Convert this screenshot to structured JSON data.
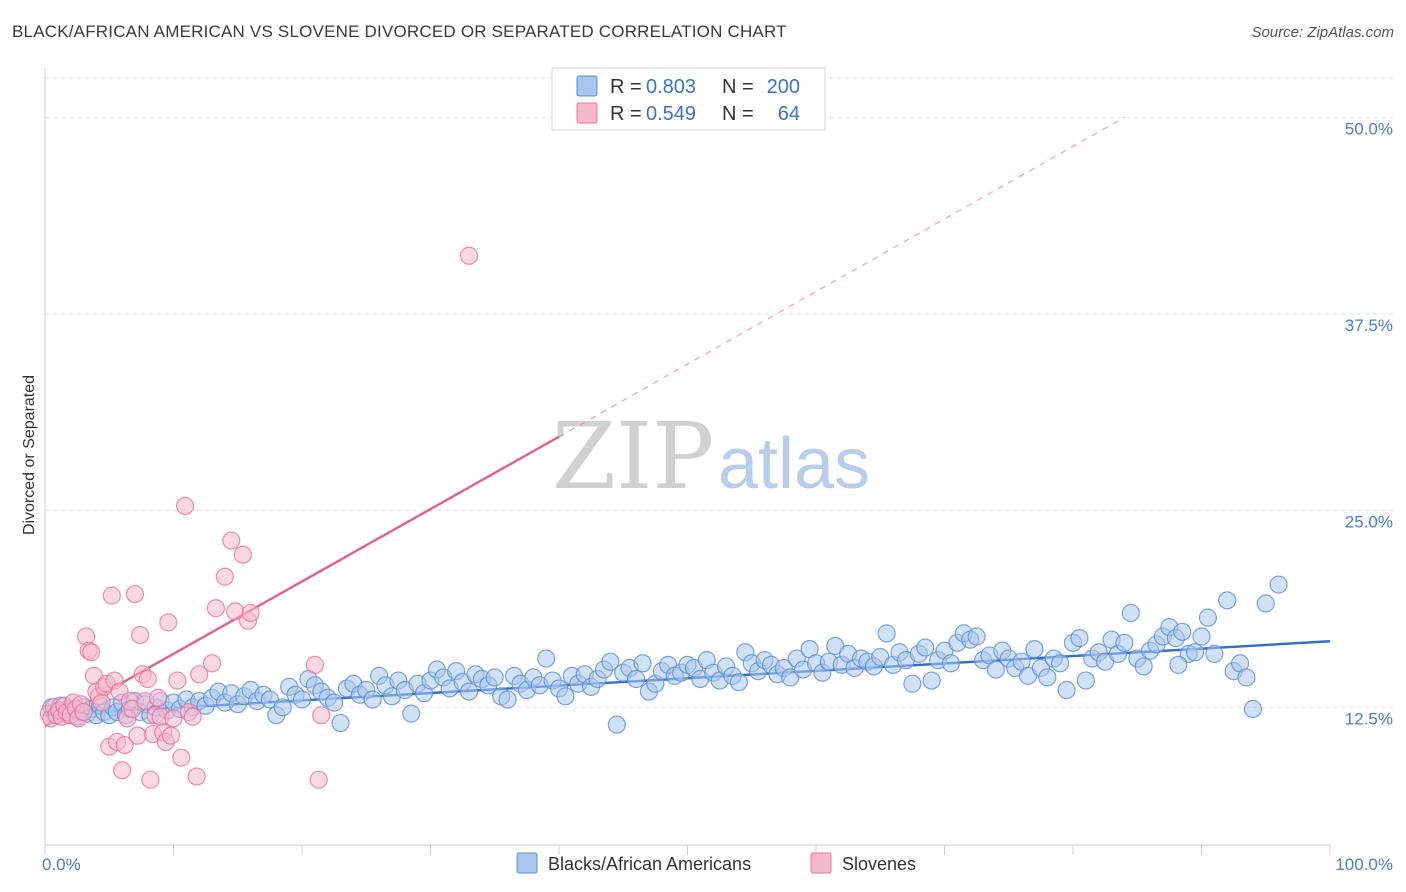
{
  "title": "BLACK/AFRICAN AMERICAN VS SLOVENE DIVORCED OR SEPARATED CORRELATION CHART",
  "source": "Source: ZipAtlas.com",
  "watermark": {
    "zip": "ZIP",
    "atlas": "atlas"
  },
  "colors": {
    "blue": "#5b8fd6",
    "blue_fill": "#a9c6ee",
    "blue_line": "#2f6fd0",
    "pink": "#e8739a",
    "pink_fill": "#f6b8cc",
    "pink_line": "#e0618e",
    "grid": "#e2e2e2",
    "axis_text": "#4a7cc9"
  },
  "legend": {
    "rows": [
      {
        "r_label": "R =",
        "r_value": "0.803",
        "n_label": "N =",
        "n_value": "200",
        "color": "blue"
      },
      {
        "r_label": "R =",
        "r_value": "0.549",
        "n_label": "N =",
        "n_value": "64",
        "color": "pink"
      }
    ]
  },
  "chart_data": {
    "type": "scatter",
    "title": "BLACK/AFRICAN AMERICAN VS SLOVENE DIVORCED OR SEPARATED CORRELATION CHART",
    "xlabel": "",
    "ylabel": "Divorced or Separated",
    "xlim": [
      0,
      100
    ],
    "ylim": [
      3.75,
      52.5
    ],
    "x_tick_labels": [
      {
        "value": 0,
        "label": "0.0%"
      },
      {
        "value": 100,
        "label": "100.0%"
      }
    ],
    "y_tick_labels": [
      {
        "value": 12.5,
        "label": "12.5%"
      },
      {
        "value": 25.0,
        "label": "25.0%"
      },
      {
        "value": 37.5,
        "label": "37.5%"
      },
      {
        "value": 50.0,
        "label": "50.0%"
      }
    ],
    "grid": true,
    "legend_position": "top-center",
    "series": [
      {
        "name": "Blacks/African Americans",
        "color": "blue",
        "trend": {
          "x0": 0,
          "y0": 12.0,
          "x1": 100,
          "y1": 16.7
        },
        "points": [
          [
            0.5,
            12.5
          ],
          [
            0.8,
            12.0
          ],
          [
            1.0,
            12.3
          ],
          [
            1.2,
            12.6
          ],
          [
            1.5,
            12.1
          ],
          [
            1.8,
            12.4
          ],
          [
            2.0,
            12.0
          ],
          [
            2.2,
            12.3
          ],
          [
            2.5,
            11.9
          ],
          [
            2.8,
            12.2
          ],
          [
            3.0,
            12.5
          ],
          [
            3.3,
            12.1
          ],
          [
            3.6,
            12.4
          ],
          [
            4.0,
            12.0
          ],
          [
            4.3,
            12.6
          ],
          [
            4.6,
            12.2
          ],
          [
            5.0,
            12.0
          ],
          [
            5.3,
            12.5
          ],
          [
            5.6,
            12.2
          ],
          [
            6.0,
            12.8
          ],
          [
            6.3,
            12.0
          ],
          [
            6.6,
            12.4
          ],
          [
            7.0,
            12.9
          ],
          [
            7.4,
            12.2
          ],
          [
            7.8,
            12.7
          ],
          [
            8.2,
            12.0
          ],
          [
            8.6,
            12.5
          ],
          [
            9.0,
            12.9
          ],
          [
            9.5,
            12.3
          ],
          [
            10.0,
            12.8
          ],
          [
            10.5,
            12.4
          ],
          [
            11.0,
            13.0
          ],
          [
            11.5,
            12.5
          ],
          [
            12.0,
            12.9
          ],
          [
            12.5,
            12.6
          ],
          [
            13.0,
            13.1
          ],
          [
            13.5,
            13.5
          ],
          [
            14.0,
            12.8
          ],
          [
            14.5,
            13.4
          ],
          [
            15.0,
            12.7
          ],
          [
            15.5,
            13.2
          ],
          [
            16.0,
            13.6
          ],
          [
            16.5,
            12.9
          ],
          [
            17.0,
            13.3
          ],
          [
            17.5,
            13.0
          ],
          [
            18.0,
            12.0
          ],
          [
            18.5,
            12.5
          ],
          [
            19.0,
            13.8
          ],
          [
            19.5,
            13.3
          ],
          [
            20.0,
            13.0
          ],
          [
            20.5,
            14.3
          ],
          [
            21.0,
            13.9
          ],
          [
            21.5,
            13.5
          ],
          [
            22.0,
            13.1
          ],
          [
            22.5,
            12.8
          ],
          [
            23.0,
            11.5
          ],
          [
            23.5,
            13.7
          ],
          [
            24.0,
            14.0
          ],
          [
            24.5,
            13.3
          ],
          [
            25.0,
            13.6
          ],
          [
            25.5,
            13.0
          ],
          [
            26.0,
            14.5
          ],
          [
            26.5,
            13.9
          ],
          [
            27.0,
            13.2
          ],
          [
            27.5,
            14.2
          ],
          [
            28.0,
            13.6
          ],
          [
            28.5,
            12.1
          ],
          [
            29.0,
            14.0
          ],
          [
            29.5,
            13.4
          ],
          [
            30.0,
            14.2
          ],
          [
            30.5,
            14.9
          ],
          [
            31.0,
            14.4
          ],
          [
            31.5,
            13.7
          ],
          [
            32.0,
            14.8
          ],
          [
            32.5,
            14.1
          ],
          [
            33.0,
            13.5
          ],
          [
            33.5,
            14.6
          ],
          [
            34.0,
            14.3
          ],
          [
            34.5,
            13.9
          ],
          [
            35.0,
            14.4
          ],
          [
            35.5,
            13.2
          ],
          [
            36.0,
            13.0
          ],
          [
            36.5,
            14.5
          ],
          [
            37.0,
            14.0
          ],
          [
            37.5,
            13.6
          ],
          [
            38.0,
            14.4
          ],
          [
            38.5,
            13.9
          ],
          [
            39.0,
            15.6
          ],
          [
            39.5,
            14.2
          ],
          [
            40.0,
            13.7
          ],
          [
            40.5,
            13.2
          ],
          [
            41.0,
            14.5
          ],
          [
            41.5,
            14.0
          ],
          [
            42.0,
            14.6
          ],
          [
            42.5,
            13.8
          ],
          [
            43.0,
            14.3
          ],
          [
            43.5,
            14.9
          ],
          [
            44.0,
            15.4
          ],
          [
            44.5,
            11.4
          ],
          [
            45.0,
            14.7
          ],
          [
            45.5,
            15.0
          ],
          [
            46.0,
            14.3
          ],
          [
            46.5,
            15.3
          ],
          [
            47.0,
            13.5
          ],
          [
            47.5,
            14.0
          ],
          [
            48.0,
            14.8
          ],
          [
            48.5,
            15.2
          ],
          [
            49.0,
            14.5
          ],
          [
            49.5,
            14.7
          ],
          [
            50.0,
            15.2
          ],
          [
            50.5,
            15.0
          ],
          [
            51.0,
            14.3
          ],
          [
            51.5,
            15.5
          ],
          [
            52.0,
            14.7
          ],
          [
            52.5,
            14.2
          ],
          [
            53.0,
            15.1
          ],
          [
            53.5,
            14.5
          ],
          [
            54.0,
            14.1
          ],
          [
            54.5,
            16.0
          ],
          [
            55.0,
            15.3
          ],
          [
            55.5,
            14.8
          ],
          [
            56.0,
            15.5
          ],
          [
            56.5,
            15.2
          ],
          [
            57.0,
            14.6
          ],
          [
            57.5,
            15.0
          ],
          [
            58.0,
            14.4
          ],
          [
            58.5,
            15.6
          ],
          [
            59.0,
            14.9
          ],
          [
            59.5,
            16.2
          ],
          [
            60.0,
            15.3
          ],
          [
            60.5,
            14.7
          ],
          [
            61.0,
            15.4
          ],
          [
            61.5,
            16.4
          ],
          [
            62.0,
            15.2
          ],
          [
            62.5,
            15.9
          ],
          [
            63.0,
            15.0
          ],
          [
            63.5,
            15.6
          ],
          [
            64.0,
            15.4
          ],
          [
            64.5,
            15.1
          ],
          [
            65.0,
            15.7
          ],
          [
            65.5,
            17.2
          ],
          [
            66.0,
            15.2
          ],
          [
            66.5,
            16.0
          ],
          [
            67.0,
            15.5
          ],
          [
            67.5,
            14.0
          ],
          [
            68.0,
            15.9
          ],
          [
            68.5,
            16.3
          ],
          [
            69.0,
            14.2
          ],
          [
            69.5,
            15.5
          ],
          [
            70.0,
            16.1
          ],
          [
            70.5,
            15.3
          ],
          [
            71.0,
            16.6
          ],
          [
            71.5,
            17.2
          ],
          [
            72.0,
            16.8
          ],
          [
            72.5,
            17.0
          ],
          [
            73.0,
            15.5
          ],
          [
            73.5,
            15.8
          ],
          [
            74.0,
            14.9
          ],
          [
            74.5,
            16.1
          ],
          [
            75.0,
            15.6
          ],
          [
            75.5,
            15.0
          ],
          [
            76.0,
            15.4
          ],
          [
            76.5,
            14.5
          ],
          [
            77.0,
            16.2
          ],
          [
            77.5,
            15.0
          ],
          [
            78.0,
            14.4
          ],
          [
            78.5,
            15.6
          ],
          [
            79.0,
            15.3
          ],
          [
            79.5,
            13.6
          ],
          [
            80.0,
            16.6
          ],
          [
            80.5,
            16.9
          ],
          [
            81.0,
            14.2
          ],
          [
            81.5,
            15.6
          ],
          [
            82.0,
            16.0
          ],
          [
            82.5,
            15.4
          ],
          [
            83.0,
            16.8
          ],
          [
            83.5,
            15.9
          ],
          [
            84.0,
            16.6
          ],
          [
            84.5,
            18.5
          ],
          [
            85.0,
            15.6
          ],
          [
            85.5,
            15.1
          ],
          [
            86.0,
            16.1
          ],
          [
            86.5,
            16.5
          ],
          [
            87.0,
            17.0
          ],
          [
            87.5,
            17.6
          ],
          [
            88.0,
            16.9
          ],
          [
            88.5,
            17.3
          ],
          [
            89.0,
            15.9
          ],
          [
            89.5,
            16.0
          ],
          [
            90.0,
            17.0
          ],
          [
            90.5,
            18.2
          ],
          [
            91.0,
            15.9
          ],
          [
            92.0,
            19.3
          ],
          [
            92.5,
            14.8
          ],
          [
            93.0,
            15.3
          ],
          [
            93.5,
            14.4
          ],
          [
            94.0,
            12.4
          ],
          [
            95.0,
            19.1
          ],
          [
            96.0,
            20.3
          ],
          [
            88.2,
            15.2
          ]
        ]
      },
      {
        "name": "Slovenes",
        "color": "pink",
        "trend": {
          "x0": 0,
          "y0": 11.3,
          "x1": 40,
          "y1": 29.7,
          "dash_to": {
            "x": 84,
            "y": 50.0
          }
        },
        "points": [
          [
            0.3,
            12.1
          ],
          [
            0.5,
            11.8
          ],
          [
            0.7,
            12.5
          ],
          [
            0.9,
            12.0
          ],
          [
            1.1,
            12.3
          ],
          [
            1.3,
            11.9
          ],
          [
            1.5,
            12.6
          ],
          [
            1.7,
            12.2
          ],
          [
            2.0,
            12.0
          ],
          [
            2.2,
            12.8
          ],
          [
            2.4,
            12.4
          ],
          [
            2.6,
            11.8
          ],
          [
            2.8,
            12.7
          ],
          [
            3.0,
            12.2
          ],
          [
            3.2,
            17.0
          ],
          [
            3.4,
            16.1
          ],
          [
            3.6,
            16.0
          ],
          [
            3.8,
            14.5
          ],
          [
            4.0,
            13.5
          ],
          [
            4.2,
            13.2
          ],
          [
            4.4,
            12.8
          ],
          [
            4.6,
            13.8
          ],
          [
            4.8,
            14.0
          ],
          [
            5.0,
            10.0
          ],
          [
            5.2,
            19.6
          ],
          [
            5.4,
            14.2
          ],
          [
            5.6,
            10.3
          ],
          [
            5.8,
            13.5
          ],
          [
            6.0,
            8.5
          ],
          [
            6.2,
            10.1
          ],
          [
            6.4,
            11.8
          ],
          [
            6.6,
            12.9
          ],
          [
            6.8,
            12.4
          ],
          [
            7.0,
            19.7
          ],
          [
            7.2,
            10.7
          ],
          [
            7.4,
            17.1
          ],
          [
            7.6,
            14.6
          ],
          [
            7.8,
            12.9
          ],
          [
            8.0,
            14.3
          ],
          [
            8.2,
            7.9
          ],
          [
            8.4,
            10.8
          ],
          [
            8.6,
            12.0
          ],
          [
            8.8,
            13.1
          ],
          [
            9.0,
            11.9
          ],
          [
            9.2,
            10.9
          ],
          [
            9.4,
            10.3
          ],
          [
            9.6,
            17.9
          ],
          [
            9.8,
            10.7
          ],
          [
            10.0,
            11.8
          ],
          [
            10.3,
            14.2
          ],
          [
            10.6,
            9.3
          ],
          [
            10.9,
            25.3
          ],
          [
            11.2,
            12.2
          ],
          [
            11.5,
            11.9
          ],
          [
            11.8,
            8.1
          ],
          [
            12.0,
            14.6
          ],
          [
            13.0,
            15.3
          ],
          [
            13.3,
            18.8
          ],
          [
            14.0,
            20.8
          ],
          [
            14.5,
            23.1
          ],
          [
            14.8,
            18.6
          ],
          [
            15.4,
            22.2
          ],
          [
            15.8,
            18.0
          ],
          [
            21.5,
            12.0
          ]
        ],
        "outliers": [
          [
            21.0,
            15.2
          ],
          [
            21.3,
            7.9
          ],
          [
            33.0,
            41.2
          ],
          [
            16.0,
            18.5
          ]
        ]
      }
    ]
  },
  "bottom_legend": [
    {
      "label": "Blacks/African Americans",
      "color": "blue"
    },
    {
      "label": "Slovenes",
      "color": "pink"
    }
  ]
}
